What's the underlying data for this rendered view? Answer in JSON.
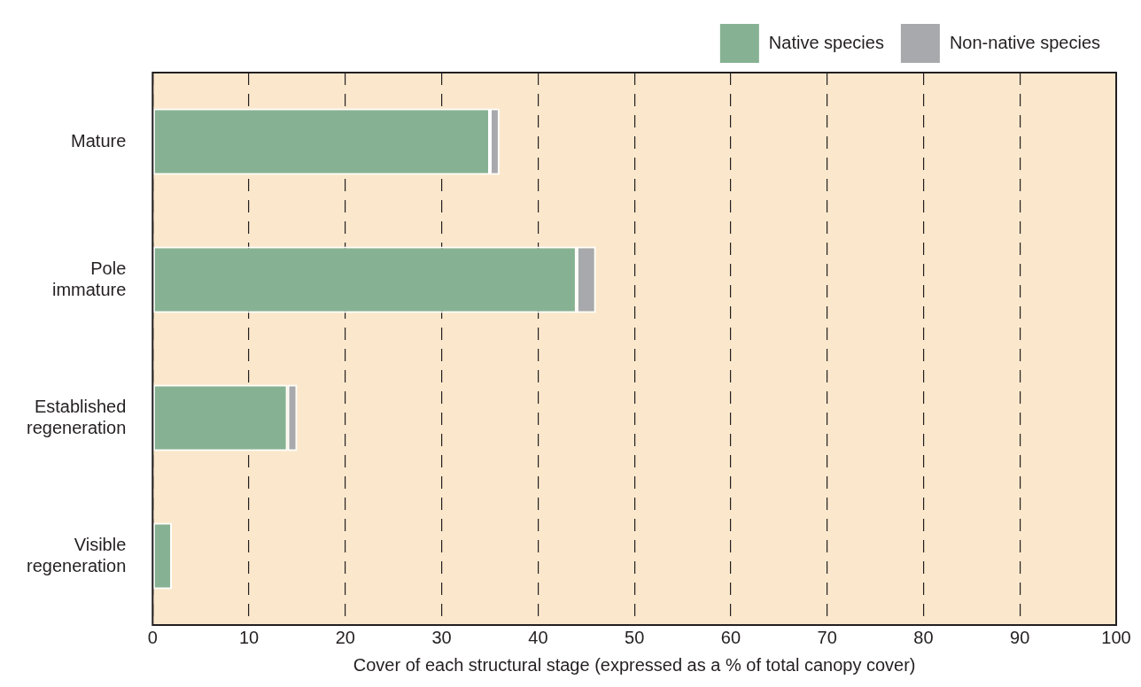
{
  "chart_data": {
    "type": "bar",
    "orientation": "horizontal",
    "stacked": true,
    "xlabel": "Cover of each structural stage (expressed as a % of total canopy cover)",
    "categories": [
      "Mature",
      "Pole immature",
      "Established regeneration",
      "Visible regeneration"
    ],
    "series": [
      {
        "name": "Native species",
        "color": "#86b293",
        "values": [
          35,
          44,
          14,
          2
        ]
      },
      {
        "name": "Non-native species",
        "color": "#a7a9ac",
        "values": [
          1,
          2,
          1,
          0
        ]
      }
    ],
    "xlim": [
      0,
      100
    ],
    "xticks": [
      0,
      10,
      20,
      30,
      40,
      50,
      60,
      70,
      80,
      90,
      100
    ],
    "grid": "x",
    "legend": "top right"
  }
}
